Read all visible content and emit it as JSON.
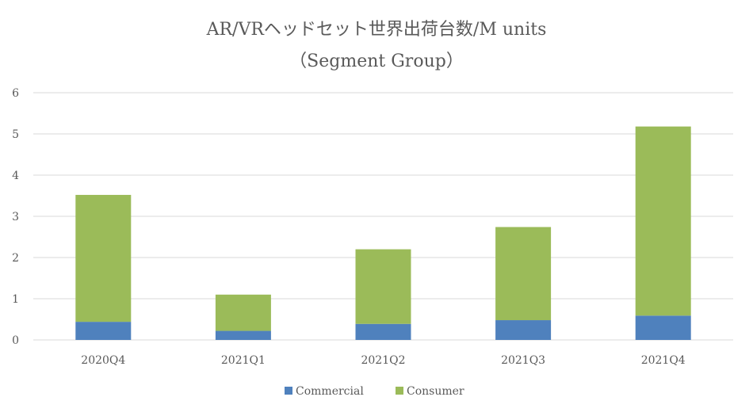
{
  "chart_data": {
    "type": "bar",
    "stacked": true,
    "title": "AR/VRヘッドセット世界出荷台数/M units",
    "subtitle": "（Segment Group）",
    "xlabel": "",
    "ylabel": "",
    "ylim": [
      0,
      6
    ],
    "yticks": [
      "0",
      "1",
      "2",
      "3",
      "4",
      "5",
      "6"
    ],
    "grid": true,
    "legend_position": "bottom",
    "categories": [
      "2020Q4",
      "2021Q1",
      "2021Q2",
      "2021Q3",
      "2021Q4"
    ],
    "series": [
      {
        "name": "Commercial",
        "color": "#4f81bd",
        "values": [
          0.44,
          0.22,
          0.39,
          0.48,
          0.59
        ]
      },
      {
        "name": "Consumer",
        "color": "#9bbb59",
        "values": [
          3.08,
          0.88,
          1.81,
          2.26,
          4.59
        ]
      }
    ]
  }
}
